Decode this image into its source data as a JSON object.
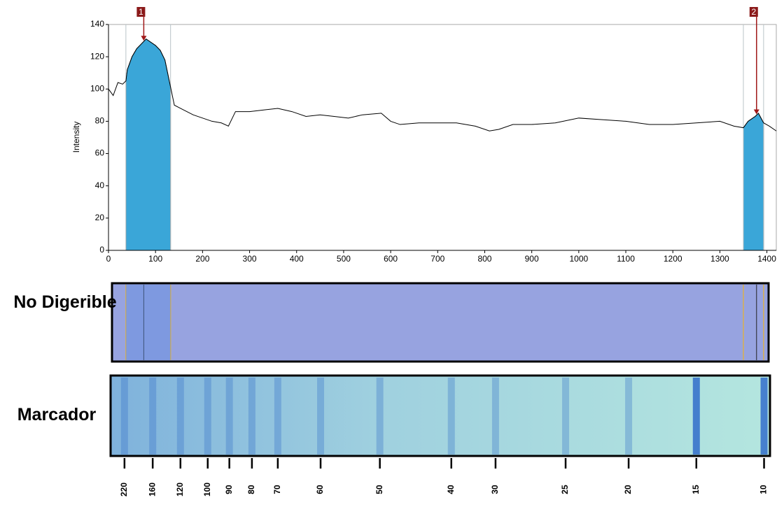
{
  "chart_data": {
    "type": "line",
    "y_label": "Intensity",
    "xlim": [
      0,
      1420
    ],
    "ylim": [
      0,
      140
    ],
    "xticks": [
      0,
      100,
      200,
      300,
      400,
      500,
      600,
      700,
      800,
      900,
      1000,
      1100,
      1200,
      1300,
      1400
    ],
    "yticks": [
      0,
      20,
      40,
      60,
      80,
      100,
      120,
      140
    ],
    "x": [
      0,
      10,
      20,
      30,
      37,
      40,
      50,
      60,
      70,
      80,
      90,
      100,
      110,
      120,
      130,
      140,
      160,
      180,
      200,
      220,
      240,
      255,
      270,
      300,
      330,
      360,
      390,
      420,
      450,
      480,
      510,
      540,
      580,
      600,
      620,
      660,
      700,
      740,
      780,
      810,
      830,
      860,
      900,
      950,
      1000,
      1050,
      1100,
      1150,
      1200,
      1250,
      1300,
      1330,
      1350,
      1360,
      1375,
      1382,
      1393,
      1405,
      1420
    ],
    "series": [
      {
        "color": "#000000",
        "values": [
          100,
          96,
          104,
          103,
          105,
          112,
          120,
          125,
          128,
          131,
          129,
          127,
          124,
          118,
          104,
          90,
          87,
          84,
          82,
          80,
          79,
          77,
          86,
          86,
          87,
          88,
          86,
          83,
          84,
          83,
          82,
          84,
          85,
          80,
          78,
          79,
          79,
          79,
          77,
          74,
          75,
          78,
          78,
          79,
          82,
          81,
          80,
          78,
          78,
          79,
          80,
          77,
          76,
          80,
          83,
          85,
          79,
          77,
          74
        ]
      }
    ],
    "peaks": [
      {
        "label": "1",
        "x": 75,
        "start": 37,
        "end": 132
      },
      {
        "label": "2",
        "x": 1378,
        "start": 1350,
        "end": 1393
      }
    ],
    "peak_color": "#3aa6d8"
  },
  "gels": [
    {
      "label": "No Digerible"
    },
    {
      "label": "Marcador"
    }
  ],
  "ladder": {
    "sizes": [
      220,
      160,
      120,
      100,
      90,
      80,
      70,
      60,
      50,
      40,
      30,
      25,
      20,
      15,
      10
    ],
    "positions": [
      34,
      94,
      153,
      211,
      257,
      305,
      360,
      451,
      577,
      729,
      823,
      972,
      1106,
      1250,
      1394
    ]
  }
}
